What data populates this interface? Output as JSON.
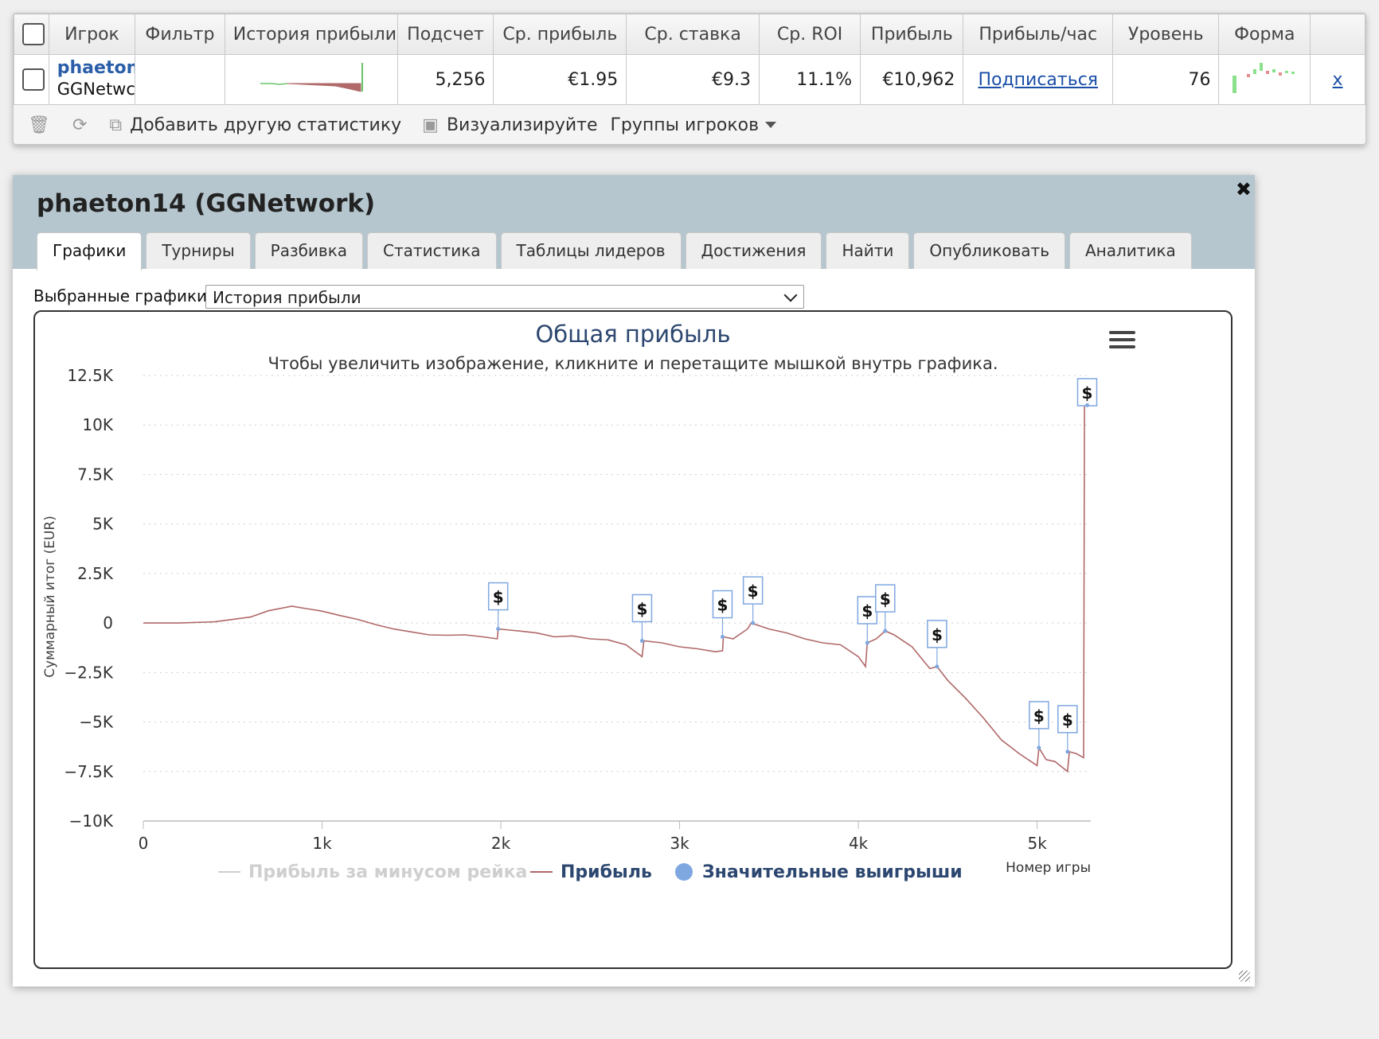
{
  "stats_table": {
    "headers": [
      "Игрок",
      "Фильтр",
      "История прибыли",
      "Подсчет",
      "Ср. прибыль",
      "Ср. ставка",
      "Ср. ROI",
      "Прибыль",
      "Прибыль/час",
      "Уровень",
      "Форма"
    ],
    "row": {
      "player_name": "phaeton",
      "player_network": "GGNetwc",
      "filter": "",
      "count": "5,256",
      "avg_profit": "€1.95",
      "avg_stake": "€9.3",
      "avg_roi": "11.1%",
      "profit": "€10,962",
      "profit_per_hour": "Подписаться",
      "level": "76",
      "remove": "x"
    },
    "toolbar": {
      "add_stat": "Добавить другую статистику",
      "visualize": "Визуализируйте",
      "player_groups": "Группы игроков"
    }
  },
  "dialog": {
    "title": "phaeton14 (GGNetwork)",
    "close": "✖",
    "tabs": [
      "Графики",
      "Турниры",
      "Разбивка",
      "Статистика",
      "Таблицы лидеров",
      "Достижения",
      "Найти",
      "Опубликовать",
      "Аналитика"
    ],
    "active_tab": "Графики",
    "selected_charts_label": "Выбранные графики:",
    "selected_chart": "История прибыли"
  },
  "chart_data": {
    "type": "line",
    "title": "Общая прибыль",
    "subtitle": "Чтобы увеличить изображение, кликните и перетащите мышкой внутрь графика.",
    "xlabel": "Номер игры",
    "ylabel": "Суммарный итог (EUR)",
    "xlim": [
      0,
      5300
    ],
    "ylim": [
      -10000,
      12500
    ],
    "x_ticks": [
      "0",
      "1k",
      "2k",
      "3k",
      "4k",
      "5k"
    ],
    "x_tick_values": [
      0,
      1000,
      2000,
      3000,
      4000,
      5000
    ],
    "y_ticks": [
      "12.5K",
      "10K",
      "7.5K",
      "5K",
      "2.5K",
      "0",
      "−2.5K",
      "−5K",
      "−7.5K",
      "−10K"
    ],
    "y_tick_values": [
      12500,
      10000,
      7500,
      5000,
      2500,
      0,
      -2500,
      -5000,
      -7500,
      -10000
    ],
    "grid": true,
    "legend_position": "bottom",
    "legend": [
      "Прибыль за минусом рейка",
      "Прибыль",
      "Значительные выигрыши"
    ],
    "series": [
      {
        "name": "Прибыль",
        "color": "#b06868",
        "x": [
          0,
          200,
          400,
          600,
          700,
          830,
          1000,
          1100,
          1200,
          1300,
          1400,
          1500,
          1600,
          1700,
          1800,
          1900,
          1980,
          1985,
          2100,
          2200,
          2300,
          2400,
          2500,
          2600,
          2700,
          2790,
          2800,
          2900,
          3000,
          3100,
          3200,
          3240,
          3245,
          3300,
          3380,
          3400,
          3500,
          3600,
          3700,
          3800,
          3900,
          4000,
          4040,
          4050,
          4100,
          4150,
          4200,
          4300,
          4400,
          4440,
          4500,
          4600,
          4700,
          4800,
          4900,
          5000,
          5010,
          5050,
          5100,
          5170,
          5180,
          5220,
          5260,
          5265,
          5280
        ],
        "y": [
          0,
          0,
          60,
          300,
          620,
          850,
          600,
          380,
          180,
          -80,
          -300,
          -450,
          -600,
          -620,
          -600,
          -700,
          -800,
          -300,
          -400,
          -500,
          -700,
          -650,
          -800,
          -850,
          -1100,
          -1700,
          -900,
          -1000,
          -1200,
          -1300,
          -1450,
          -1400,
          -700,
          -800,
          -300,
          0,
          -300,
          -500,
          -800,
          -1000,
          -1100,
          -1700,
          -2200,
          -1000,
          -800,
          -400,
          -600,
          -1200,
          -2300,
          -2200,
          -2900,
          -3800,
          -4800,
          -5900,
          -6600,
          -7200,
          -6300,
          -6900,
          -7000,
          -7500,
          -6500,
          -6600,
          -6800,
          11000,
          11000
        ]
      }
    ],
    "big_wins": {
      "name": "Значительные выигрыши",
      "color": "#7fa7e0",
      "x": [
        1985,
        2790,
        3240,
        3410,
        4050,
        4150,
        4440,
        5010,
        5170,
        5280
      ],
      "y": [
        -300,
        -900,
        -700,
        0,
        -1000,
        -400,
        -2200,
        -6300,
        -6500,
        11000
      ],
      "label": "$"
    },
    "rake_series": {
      "name": "Прибыль за минусом рейка",
      "color": "#cfcfcf"
    }
  }
}
